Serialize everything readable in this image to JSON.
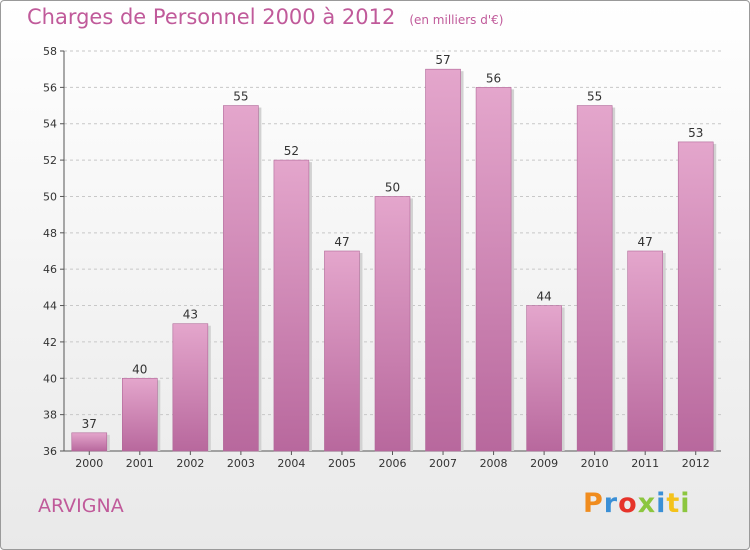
{
  "header": {
    "title": "Charges de Personnel 2000 à 2012",
    "subtitle": "(en milliers d'€)"
  },
  "footer": {
    "commune": "ARVIGNA",
    "logo_letters": [
      "P",
      "r",
      "o",
      "x",
      "i",
      "t",
      "i"
    ],
    "logo_colors": [
      "#f08c1e",
      "#3a8fd6",
      "#e6332a",
      "#8cc63f",
      "#3a8fd6",
      "#f4c21b",
      "#8cc63f"
    ]
  },
  "chart_data": {
    "type": "bar",
    "title": "Charges de Personnel 2000 à 2012",
    "subtitle": "(en milliers d'€)",
    "categories": [
      "2000",
      "2001",
      "2002",
      "2003",
      "2004",
      "2005",
      "2006",
      "2007",
      "2008",
      "2009",
      "2010",
      "2011",
      "2012"
    ],
    "values": [
      37,
      40,
      43,
      55,
      52,
      47,
      50,
      57,
      56,
      44,
      55,
      47,
      53
    ],
    "ylim": [
      36,
      58
    ],
    "yticks": [
      36,
      38,
      40,
      42,
      44,
      46,
      48,
      50,
      52,
      54,
      56,
      58
    ],
    "grid": true,
    "bar_color": "#c878ac",
    "xlabel": "",
    "ylabel": ""
  }
}
